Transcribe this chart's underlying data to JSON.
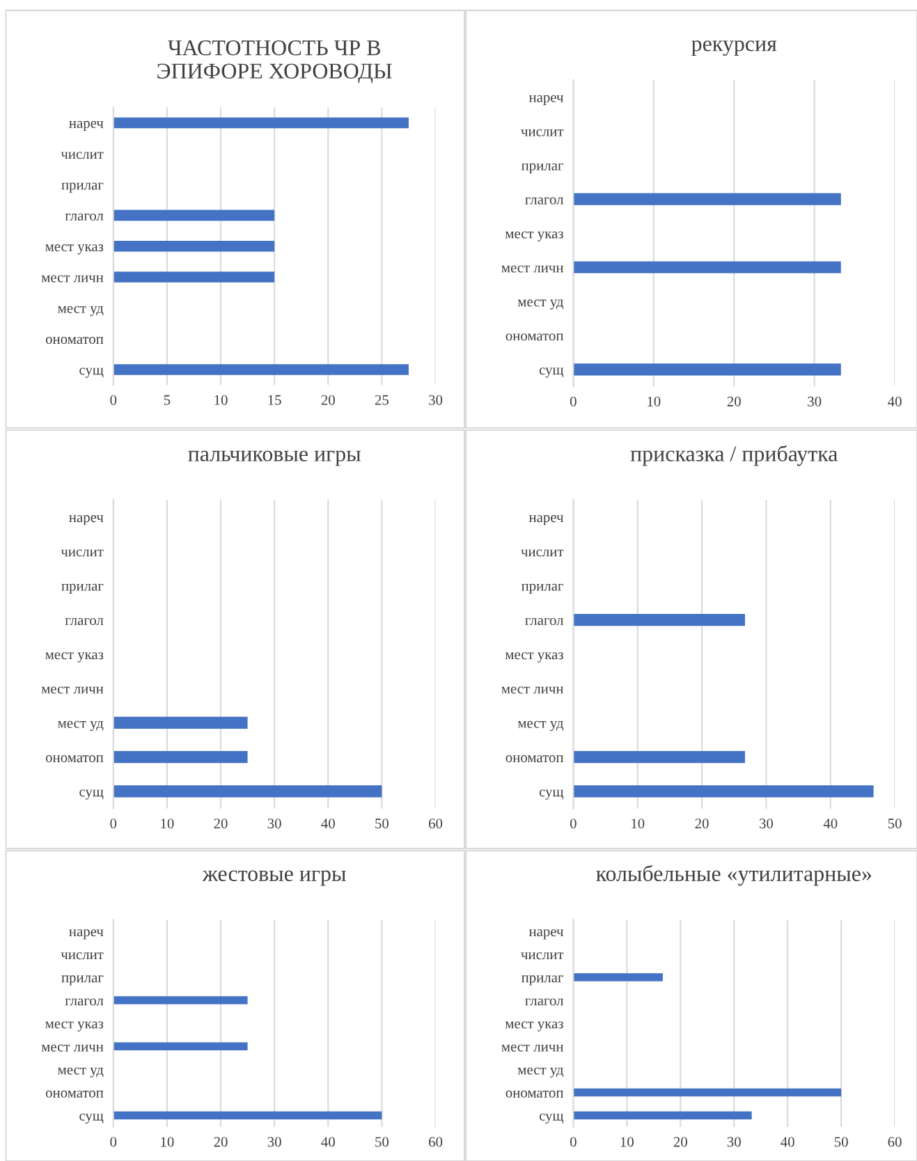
{
  "chart_data": [
    {
      "type": "bar",
      "orientation": "horizontal",
      "title": "ЧАСТОТНОСТЬ ЧР В ЭПИФОРЕ ХОРОВОДЫ",
      "categories": [
        "нареч",
        "числит",
        "прилаг",
        "глагол",
        "мест указ",
        "мест личн",
        "мест уд",
        "ономатоп",
        "сущ"
      ],
      "values": [
        27.5,
        0,
        0,
        15,
        15,
        15,
        0,
        0,
        27.5
      ],
      "color": "#4472c4",
      "xlim": [
        0,
        30
      ],
      "xticks": [
        0,
        5,
        10,
        15,
        20,
        25,
        30
      ],
      "grid": "x"
    },
    {
      "type": "bar",
      "orientation": "horizontal",
      "title": "рекурсия",
      "categories": [
        "нареч",
        "числит",
        "прилаг",
        "глагол",
        "мест указ",
        "мест личн",
        "мест уд",
        "ономатоп",
        "сущ"
      ],
      "values": [
        0,
        0,
        0,
        33.3,
        0,
        33.3,
        0,
        0,
        33.3
      ],
      "color": "#4472c4",
      "xlim": [
        0,
        40
      ],
      "xticks": [
        0,
        10,
        20,
        30,
        40
      ],
      "grid": "x"
    },
    {
      "type": "bar",
      "orientation": "horizontal",
      "title": "пальчиковые игры",
      "categories": [
        "нареч",
        "числит",
        "прилаг",
        "глагол",
        "мест указ",
        "мест личн",
        "мест уд",
        "ономатоп",
        "сущ"
      ],
      "values": [
        0,
        0,
        0,
        0,
        0,
        0,
        25,
        25,
        50
      ],
      "color": "#4472c4",
      "xlim": [
        0,
        60
      ],
      "xticks": [
        0,
        10,
        20,
        30,
        40,
        50,
        60
      ],
      "grid": "x"
    },
    {
      "type": "bar",
      "orientation": "horizontal",
      "title": "присказка / прибаутка",
      "categories": [
        "нареч",
        "числит",
        "прилаг",
        "глагол",
        "мест указ",
        "мест личн",
        "мест уд",
        "ономатоп",
        "сущ"
      ],
      "values": [
        0,
        0,
        0,
        26.7,
        0,
        0,
        0,
        26.7,
        46.7
      ],
      "color": "#4472c4",
      "xlim": [
        0,
        50
      ],
      "xticks": [
        0,
        10,
        20,
        30,
        40,
        50
      ],
      "grid": "x"
    },
    {
      "type": "bar",
      "orientation": "horizontal",
      "title": "жестовые игры",
      "categories": [
        "нареч",
        "числит",
        "прилаг",
        "глагол",
        "мест указ",
        "мест личн",
        "мест уд",
        "ономатоп",
        "сущ"
      ],
      "values": [
        0,
        0,
        0,
        25,
        0,
        25,
        0,
        0,
        50
      ],
      "color": "#4472c4",
      "xlim": [
        0,
        60
      ],
      "xticks": [
        0,
        10,
        20,
        30,
        40,
        50,
        60
      ],
      "grid": "x"
    },
    {
      "type": "bar",
      "orientation": "horizontal",
      "title": "колыбельные «утилитарные»",
      "categories": [
        "нареч",
        "числит",
        "прилаг",
        "глагол",
        "мест указ",
        "мест личн",
        "мест уд",
        "ономатоп",
        "сущ"
      ],
      "values": [
        0,
        0,
        16.7,
        0,
        0,
        0,
        0,
        50,
        33.3
      ],
      "color": "#4472c4",
      "xlim": [
        0,
        60
      ],
      "xticks": [
        0,
        10,
        20,
        30,
        40,
        50,
        60
      ],
      "grid": "x"
    }
  ]
}
